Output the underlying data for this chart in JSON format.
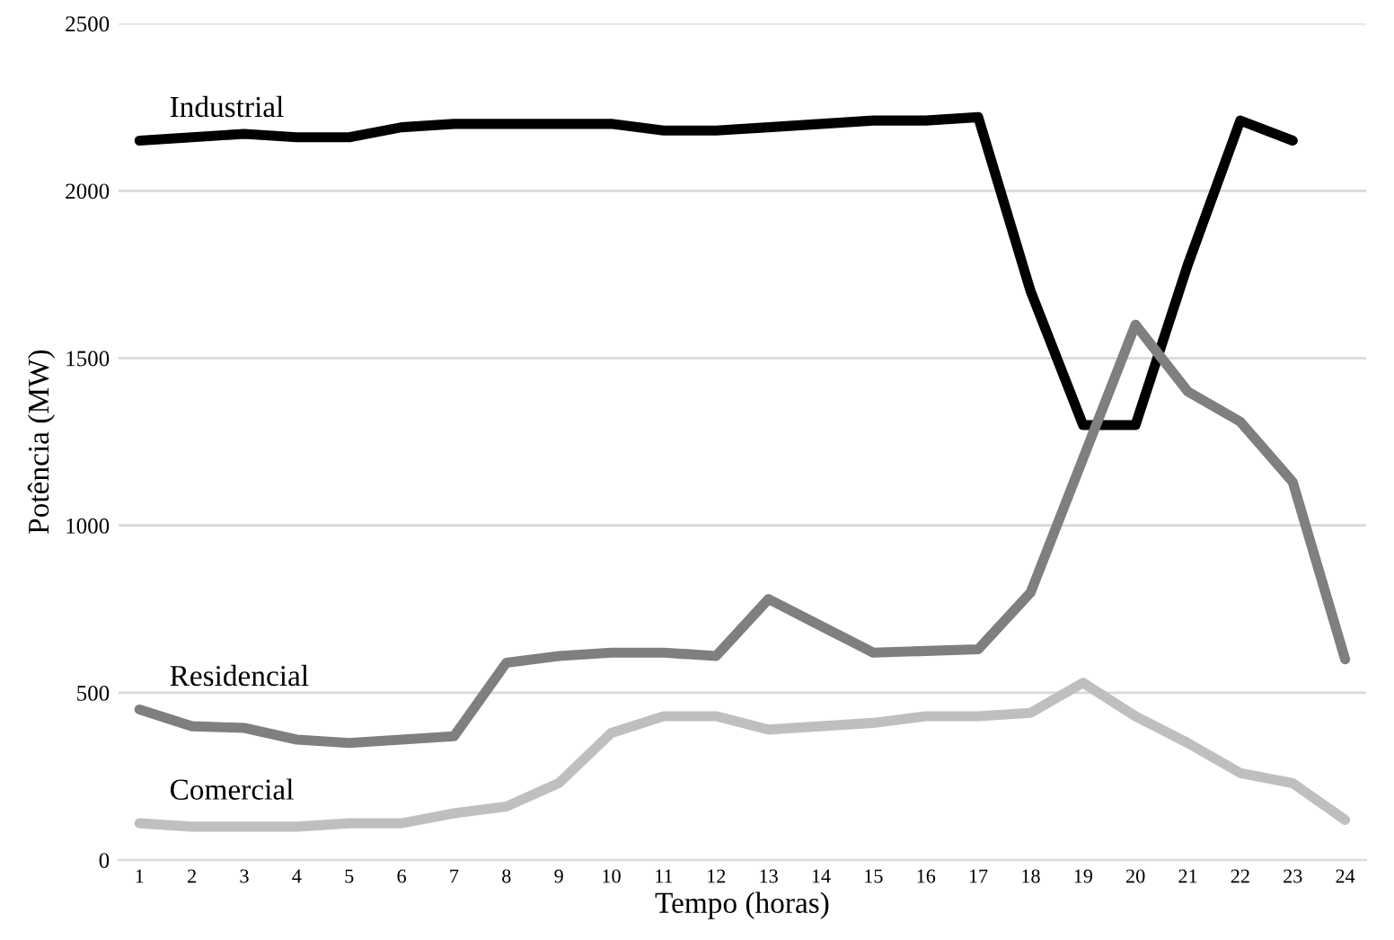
{
  "chart_data": {
    "type": "line",
    "xlabel": "Tempo (horas)",
    "ylabel": "Potência (MW)",
    "categories": [
      "1",
      "2",
      "3",
      "4",
      "5",
      "6",
      "7",
      "8",
      "9",
      "10",
      "11",
      "12",
      "13",
      "14",
      "15",
      "16",
      "17",
      "18",
      "19",
      "20",
      "21",
      "22",
      "23",
      "24"
    ],
    "series": [
      {
        "name": "Industrial",
        "color": "#000000",
        "values": [
          2150,
          2160,
          2170,
          2160,
          2160,
          2190,
          2200,
          2200,
          2200,
          2200,
          2180,
          2180,
          2190,
          2200,
          2210,
          2210,
          2220,
          1700,
          1300,
          1300,
          1780,
          2210,
          2150,
          null
        ]
      },
      {
        "name": "Residencial",
        "color": "#7f7f7f",
        "values": [
          450,
          400,
          395,
          360,
          350,
          360,
          370,
          590,
          610,
          620,
          620,
          610,
          780,
          700,
          620,
          625,
          630,
          800,
          1200,
          1600,
          1400,
          1310,
          1130,
          600
        ]
      },
      {
        "name": "Comercial",
        "color": "#bfbfbf",
        "values": [
          110,
          100,
          100,
          100,
          110,
          110,
          140,
          160,
          230,
          380,
          430,
          430,
          390,
          400,
          410,
          430,
          430,
          440,
          530,
          430,
          350,
          260,
          230,
          120
        ]
      }
    ],
    "ylim": [
      0,
      2500
    ],
    "yticks": [
      0,
      500,
      1000,
      1500,
      2000,
      2500
    ],
    "grid": "y",
    "legend": false,
    "marker": "none",
    "line_style": "solid"
  }
}
